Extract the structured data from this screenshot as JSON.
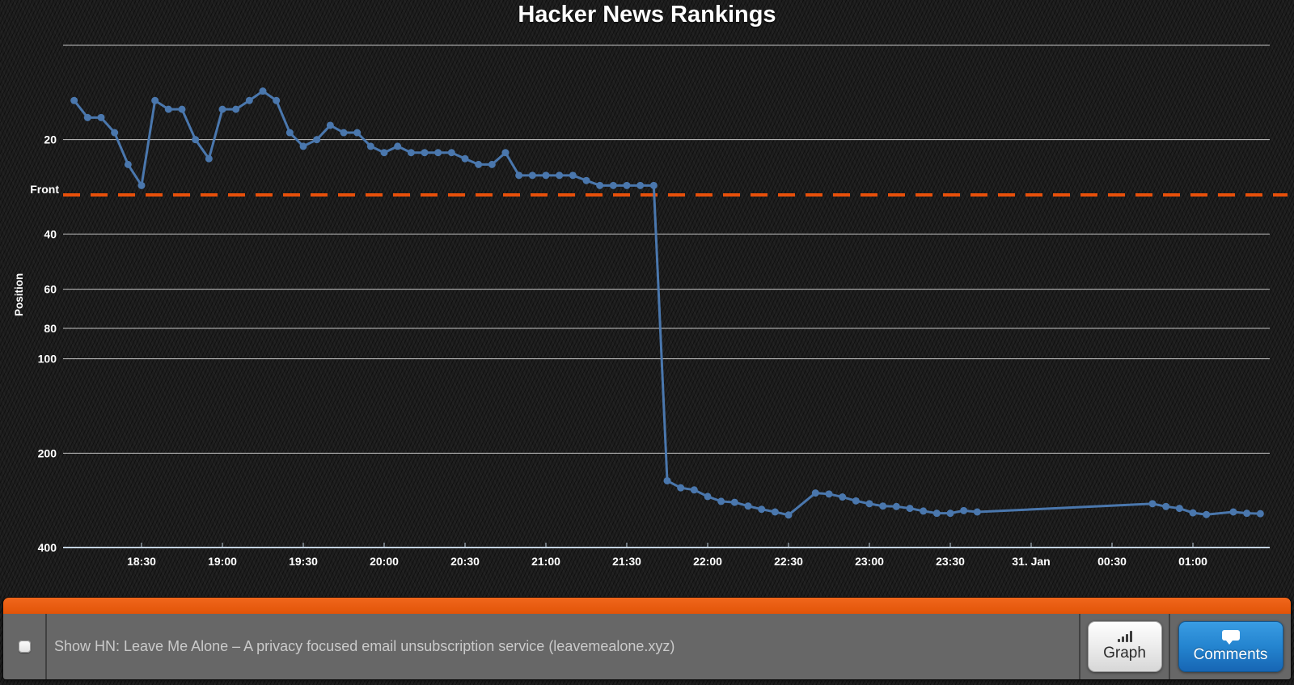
{
  "chart_data": {
    "type": "line",
    "title": "Hacker News Rankings",
    "xlabel": "",
    "ylabel": "Position",
    "y_scale": "logarithmic, inverted (rank 1 at top)",
    "grid": true,
    "legend": "none",
    "y_range": [
      10,
      400
    ],
    "x_range_hours": [
      18.015,
      25.475
    ],
    "y_gridlines": [
      {
        "value": 10,
        "label": ""
      },
      {
        "value": 20,
        "label": "20"
      },
      {
        "value": 40,
        "label": "40"
      },
      {
        "value": 60,
        "label": "60"
      },
      {
        "value": 80,
        "label": "80"
      },
      {
        "value": 100,
        "label": "100"
      },
      {
        "value": 200,
        "label": "200"
      },
      {
        "value": 400,
        "label": "400"
      }
    ],
    "front_line": {
      "label": "Front",
      "position": 30
    },
    "x_ticks": [
      {
        "label": "18:30",
        "time": "18:30"
      },
      {
        "label": "19:00",
        "time": "19:00"
      },
      {
        "label": "19:30",
        "time": "19:30"
      },
      {
        "label": "20:00",
        "time": "20:00"
      },
      {
        "label": "20:30",
        "time": "20:30"
      },
      {
        "label": "21:00",
        "time": "21:00"
      },
      {
        "label": "21:30",
        "time": "21:30"
      },
      {
        "label": "22:00",
        "time": "22:00"
      },
      {
        "label": "22:30",
        "time": "22:30"
      },
      {
        "label": "23:00",
        "time": "23:00"
      },
      {
        "label": "23:30",
        "time": "23:30"
      },
      {
        "label": "31. Jan",
        "time": "00:00"
      },
      {
        "label": "00:30",
        "time": "00:30"
      },
      {
        "label": "01:00",
        "time": "01:00"
      }
    ],
    "series": [
      {
        "name": "Position",
        "points": [
          [
            "18:05",
            15
          ],
          [
            "18:10",
            17
          ],
          [
            "18:15",
            17
          ],
          [
            "18:20",
            19
          ],
          [
            "18:25",
            24
          ],
          [
            "18:30",
            28
          ],
          [
            "18:35",
            15
          ],
          [
            "18:40",
            16
          ],
          [
            "18:45",
            16
          ],
          [
            "18:50",
            20
          ],
          [
            "18:55",
            23
          ],
          [
            "19:00",
            16
          ],
          [
            "19:05",
            16
          ],
          [
            "19:10",
            15
          ],
          [
            "19:15",
            14
          ],
          [
            "19:20",
            15
          ],
          [
            "19:25",
            19
          ],
          [
            "19:30",
            21
          ],
          [
            "19:35",
            20
          ],
          [
            "19:40",
            18
          ],
          [
            "19:45",
            19
          ],
          [
            "19:50",
            19
          ],
          [
            "19:55",
            21
          ],
          [
            "20:00",
            22
          ],
          [
            "20:05",
            21
          ],
          [
            "20:10",
            22
          ],
          [
            "20:15",
            22
          ],
          [
            "20:20",
            22
          ],
          [
            "20:25",
            22
          ],
          [
            "20:30",
            23
          ],
          [
            "20:35",
            24
          ],
          [
            "20:40",
            24
          ],
          [
            "20:45",
            22
          ],
          [
            "20:50",
            26
          ],
          [
            "20:55",
            26
          ],
          [
            "21:00",
            26
          ],
          [
            "21:05",
            26
          ],
          [
            "21:10",
            26
          ],
          [
            "21:15",
            27
          ],
          [
            "21:20",
            28
          ],
          [
            "21:25",
            28
          ],
          [
            "21:30",
            28
          ],
          [
            "21:35",
            28
          ],
          [
            "21:40",
            28
          ],
          [
            "21:45",
            245
          ],
          [
            "21:50",
            258
          ],
          [
            "21:55",
            262
          ],
          [
            "22:00",
            275
          ],
          [
            "22:05",
            285
          ],
          [
            "22:10",
            287
          ],
          [
            "22:15",
            295
          ],
          [
            "22:20",
            302
          ],
          [
            "22:25",
            308
          ],
          [
            "22:30",
            315
          ],
          [
            "22:40",
            268
          ],
          [
            "22:45",
            270
          ],
          [
            "22:50",
            276
          ],
          [
            "22:55",
            284
          ],
          [
            "23:00",
            290
          ],
          [
            "23:05",
            295
          ],
          [
            "23:10",
            296
          ],
          [
            "23:15",
            300
          ],
          [
            "23:20",
            306
          ],
          [
            "23:25",
            311
          ],
          [
            "23:30",
            311
          ],
          [
            "23:35",
            305
          ],
          [
            "23:40",
            308
          ],
          [
            "00:45",
            290
          ],
          [
            "00:50",
            296
          ],
          [
            "00:55",
            300
          ],
          [
            "01:00",
            310
          ],
          [
            "01:05",
            314
          ],
          [
            "01:15",
            308
          ],
          [
            "01:20",
            311
          ],
          [
            "01:25",
            312
          ]
        ]
      }
    ]
  },
  "colors": {
    "line": "#4a77ad",
    "grid_line": "#dcdcdc",
    "axis_line": "#c3d2e0",
    "front_line": "#e8500a",
    "label": "#ffffff",
    "accent_bar": "#e85d0f",
    "panel_body": "#676767",
    "comments_button": "#2484cf"
  },
  "footer": {
    "story": {
      "title": "Show HN: Leave Me Alone – A privacy focused email unsubscription service (leavemealone.xyz)",
      "checkbox_checked": false
    },
    "buttons": {
      "graph": "Graph",
      "comments": "Comments"
    }
  }
}
